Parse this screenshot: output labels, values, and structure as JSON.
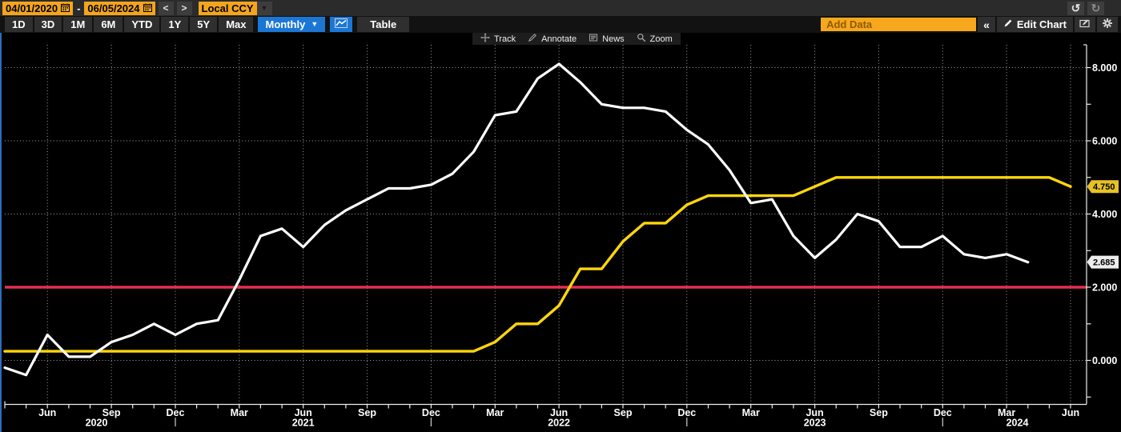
{
  "icons": {
    "caret_down": "▼",
    "undo": "↺",
    "redo": "↻",
    "collapse": "«",
    "prev": "<",
    "next": ">"
  },
  "toolbar": {
    "date_from": "04/01/2020",
    "date_sep": "-",
    "date_to": "06/05/2024",
    "currency": "Local CCY",
    "range_buttons": [
      "1D",
      "3D",
      "1M",
      "6M",
      "YTD",
      "1Y",
      "5Y",
      "Max"
    ],
    "period_label": "Monthly",
    "table_label": "Table",
    "add_data_placeholder": "Add Data",
    "edit_chart_label": "Edit Chart"
  },
  "chart_tools": {
    "items": [
      {
        "icon": "track-icon",
        "label": "Track"
      },
      {
        "icon": "annotate-icon",
        "label": "Annotate"
      },
      {
        "icon": "news-icon",
        "label": "News"
      },
      {
        "icon": "zoom-icon",
        "label": "Zoom"
      }
    ]
  },
  "chart_data": {
    "type": "line",
    "x_start_month": "2020-04",
    "x_months_count": 51,
    "ylim": [
      -1.3,
      8.8
    ],
    "y_tick_values": [
      -1,
      0,
      1,
      2,
      3,
      4,
      5,
      6,
      7,
      8
    ],
    "y_axis_labels": [
      {
        "value": 0,
        "label": "0.000"
      },
      {
        "value": 2,
        "label": "2.000"
      },
      {
        "value": 4,
        "label": "4.000"
      },
      {
        "value": 6,
        "label": "6.000"
      },
      {
        "value": 8,
        "label": "8.000"
      }
    ],
    "grid_h_values": [
      0,
      4,
      6,
      8
    ],
    "x_quarter_ticks": [
      {
        "index": 2,
        "label": "Jun"
      },
      {
        "index": 5,
        "label": "Sep"
      },
      {
        "index": 8,
        "label": "Dec"
      },
      {
        "index": 11,
        "label": "Mar"
      },
      {
        "index": 14,
        "label": "Jun"
      },
      {
        "index": 17,
        "label": "Sep"
      },
      {
        "index": 20,
        "label": "Dec"
      },
      {
        "index": 23,
        "label": "Mar"
      },
      {
        "index": 26,
        "label": "Jun"
      },
      {
        "index": 29,
        "label": "Sep"
      },
      {
        "index": 32,
        "label": "Dec"
      },
      {
        "index": 35,
        "label": "Mar"
      },
      {
        "index": 38,
        "label": "Jun"
      },
      {
        "index": 41,
        "label": "Sep"
      },
      {
        "index": 44,
        "label": "Dec"
      },
      {
        "index": 47,
        "label": "Mar"
      },
      {
        "index": 50,
        "label": "Jun"
      }
    ],
    "x_year_labels": [
      {
        "index": 4.3,
        "label": "2020"
      },
      {
        "index": 14,
        "label": "2021"
      },
      {
        "index": 26,
        "label": "2022"
      },
      {
        "index": 38,
        "label": "2023"
      },
      {
        "index": 47.5,
        "label": "2024"
      }
    ],
    "year_divider_indices": [
      8,
      20,
      32,
      44
    ],
    "reference_line": {
      "value": 2.0,
      "color": "#e62e52"
    },
    "series": [
      {
        "name": "yellow-line",
        "color": "#ffd60a",
        "start_index": 0,
        "axis_tag_label": "4.750",
        "axis_tag_bg": "#e7c227",
        "values": [
          0.25,
          0.25,
          0.25,
          0.25,
          0.25,
          0.25,
          0.25,
          0.25,
          0.25,
          0.25,
          0.25,
          0.25,
          0.25,
          0.25,
          0.25,
          0.25,
          0.25,
          0.25,
          0.25,
          0.25,
          0.25,
          0.25,
          0.25,
          0.5,
          1.0,
          1.0,
          1.5,
          2.5,
          2.5,
          3.25,
          3.75,
          3.75,
          4.25,
          4.5,
          4.5,
          4.5,
          4.5,
          4.5,
          4.75,
          5.0,
          5.0,
          5.0,
          5.0,
          5.0,
          5.0,
          5.0,
          5.0,
          5.0,
          5.0,
          5.0,
          4.75
        ]
      },
      {
        "name": "white-line",
        "color": "#ffffff",
        "start_index": 0,
        "axis_tag_label": "2.685",
        "axis_tag_bg": "#ededed",
        "values": [
          -0.2,
          -0.4,
          0.7,
          0.1,
          0.1,
          0.5,
          0.7,
          1.0,
          0.7,
          1.0,
          1.1,
          2.2,
          3.4,
          3.6,
          3.1,
          3.7,
          4.1,
          4.4,
          4.7,
          4.7,
          4.8,
          5.1,
          5.7,
          6.7,
          6.8,
          7.7,
          8.1,
          7.6,
          7.0,
          6.9,
          6.9,
          6.8,
          6.3,
          5.9,
          5.2,
          4.3,
          4.4,
          3.4,
          2.8,
          3.3,
          4.0,
          3.8,
          3.1,
          3.1,
          3.4,
          2.9,
          2.8,
          2.9,
          2.685
        ]
      }
    ],
    "colors": {
      "grid": "#cfcfcf",
      "axis": "#ededed",
      "tick_text": "#ffffff"
    }
  }
}
